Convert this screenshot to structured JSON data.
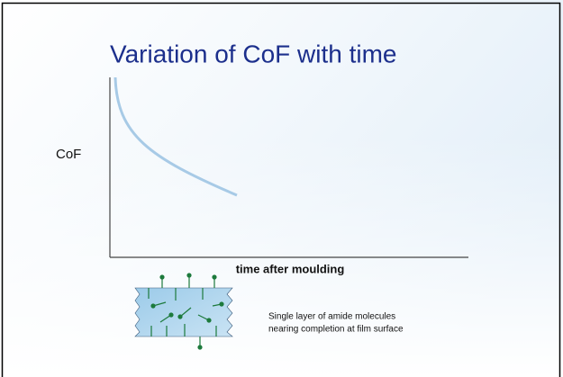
{
  "slide": {
    "title": "Variation of CoF with time",
    "y_label": "CoF",
    "x_label": "time after moulding",
    "caption": [
      "Single layer of amide molecules",
      "nearing completion at film surface"
    ]
  }
}
